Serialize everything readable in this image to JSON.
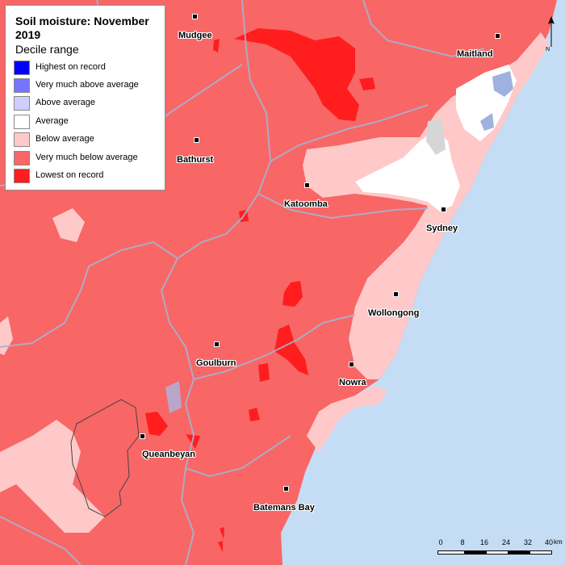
{
  "legend": {
    "title": "Soil moisture: November 2019",
    "subtitle": "Decile range",
    "items": [
      {
        "label": "Highest on record",
        "color": "#0000ff"
      },
      {
        "label": "Very much above average",
        "color": "#7575ff"
      },
      {
        "label": "Above average",
        "color": "#cfcfff"
      },
      {
        "label": "Average",
        "color": "#ffffff"
      },
      {
        "label": "Below average",
        "color": "#ffc9c9"
      },
      {
        "label": "Very much below average",
        "color": "#f86666"
      },
      {
        "label": "Lowest on record",
        "color": "#ff1d1d"
      }
    ]
  },
  "cities": [
    {
      "name": "Mudgee"
    },
    {
      "name": "Maitland"
    },
    {
      "name": "Bathurst"
    },
    {
      "name": "Katoomba"
    },
    {
      "name": "Sydney"
    },
    {
      "name": "Wollongong"
    },
    {
      "name": "Goulburn"
    },
    {
      "name": "Nowra"
    },
    {
      "name": "Queanbeyan"
    },
    {
      "name": "Batemans Bay"
    }
  ],
  "north_arrow": {
    "label": "N"
  },
  "scale_bar": {
    "ticks": [
      "0",
      "8",
      "16",
      "24",
      "32",
      "40"
    ],
    "unit": "km"
  },
  "colors": {
    "ocean": "#c4ddf4",
    "boundary": "#a9b1cc"
  }
}
